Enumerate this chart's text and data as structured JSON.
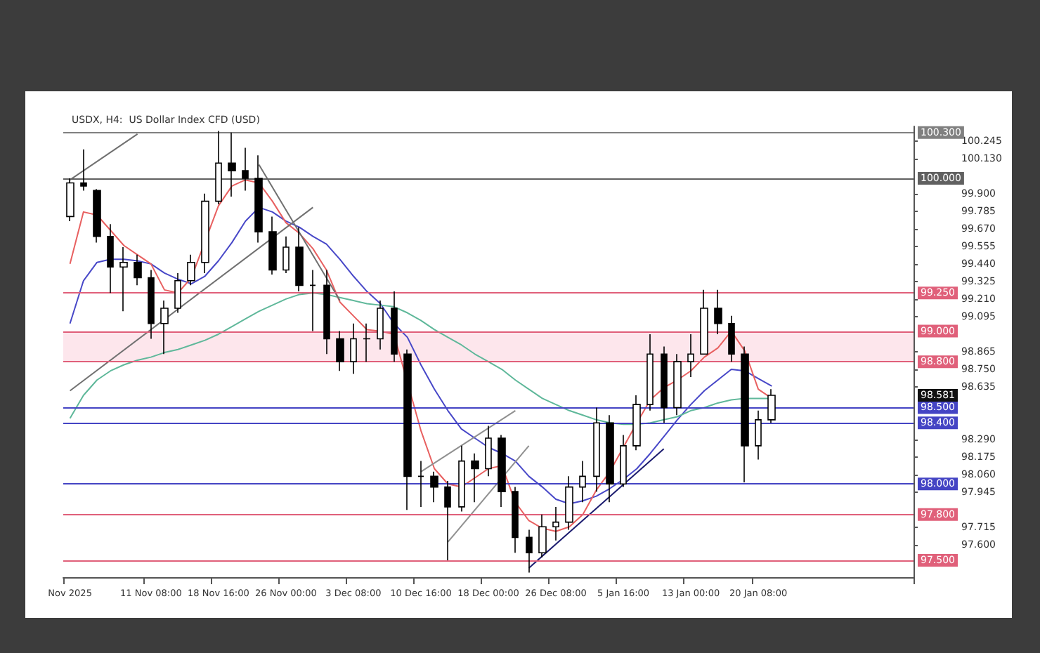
{
  "chart_data": {
    "type": "candlestick",
    "title": "USDX, H4:  US Dollar Index CFD (USD)",
    "categories": [
      "Nov 2025",
      null,
      null,
      null,
      null,
      null,
      "11 Nov 08:00",
      null,
      null,
      null,
      null,
      "18 Nov 16:00",
      null,
      null,
      null,
      null,
      "26 Nov 00:00",
      null,
      null,
      null,
      null,
      "3 Dec 08:00",
      null,
      null,
      null,
      null,
      "10 Dec 16:00",
      null,
      null,
      null,
      null,
      "18 Dec 00:00",
      null,
      null,
      null,
      null,
      "26 Dec 08:00",
      null,
      null,
      null,
      null,
      "5 Jan 16:00",
      null,
      null,
      null,
      null,
      "13 Jan 00:00",
      null,
      null,
      null,
      null,
      "20 Jan 08:00",
      null,
      null,
      null,
      null,
      null,
      null,
      null,
      null,
      null,
      null,
      null
    ],
    "series": [
      {
        "type": "line",
        "color": "#4848c8",
        "values": [
          99.05,
          99.33,
          99.45,
          99.47,
          99.47,
          99.46,
          99.44,
          99.38,
          99.34,
          99.31,
          99.36,
          99.46,
          99.58,
          99.72,
          99.81,
          99.78,
          99.72,
          99.68,
          99.62,
          99.57,
          99.47,
          99.36,
          99.26,
          99.18,
          99.05,
          98.96,
          98.78,
          98.62,
          98.48,
          98.36,
          98.3,
          98.24,
          98.2,
          98.15,
          98.05,
          97.98,
          97.9,
          97.87,
          97.89,
          97.92,
          97.97,
          98.03,
          98.1,
          98.2,
          98.31,
          98.42,
          98.52,
          98.61,
          98.68,
          98.75,
          98.74,
          98.69,
          98.64,
          null,
          null,
          null,
          null,
          null,
          null,
          null,
          null,
          null,
          null
        ]
      },
      {
        "type": "line",
        "color": "#5fb89a",
        "values": [
          98.43,
          98.58,
          98.68,
          98.74,
          98.78,
          98.81,
          98.83,
          98.86,
          98.88,
          98.91,
          98.94,
          98.98,
          99.03,
          99.08,
          99.13,
          99.17,
          99.21,
          99.24,
          99.25,
          99.24,
          99.22,
          99.2,
          99.18,
          99.17,
          99.16,
          99.12,
          99.07,
          99.01,
          98.96,
          98.91,
          98.85,
          98.8,
          98.75,
          98.68,
          98.62,
          98.56,
          98.52,
          98.48,
          98.45,
          98.42,
          98.4,
          98.39,
          98.39,
          98.4,
          98.42,
          98.44,
          98.48,
          98.5,
          98.53,
          98.55,
          98.56,
          98.56,
          98.56,
          null,
          null,
          null,
          null,
          null,
          null,
          null,
          null,
          null,
          null
        ]
      },
      {
        "type": "line",
        "color": "#e86060",
        "values": [
          99.44,
          99.78,
          99.76,
          99.66,
          99.56,
          99.5,
          99.44,
          99.27,
          99.25,
          99.35,
          null,
          99.82,
          99.95,
          99.99,
          99.97,
          99.85,
          99.71,
          99.64,
          99.54,
          99.4,
          99.19,
          99.1,
          99.01,
          99.0,
          98.98,
          null,
          98.35,
          98.1,
          98.0,
          97.98,
          98.04,
          98.1,
          98.12,
          97.88,
          97.76,
          97.71,
          97.69,
          97.72,
          97.8,
          97.96,
          98.08,
          98.24,
          98.4,
          98.55,
          98.63,
          98.68,
          98.74,
          98.83,
          98.89,
          99.0,
          98.87,
          98.62,
          98.56,
          null,
          null,
          null,
          null,
          null,
          null,
          null,
          null,
          null,
          null
        ]
      },
      {
        "type": "line",
        "color": "#707070",
        "values": [
          99.99,
          null,
          null,
          null,
          null,
          100.29,
          null,
          null,
          null,
          null,
          null,
          null,
          null,
          null,
          null,
          null,
          null,
          null,
          null,
          null,
          null,
          null,
          null,
          null,
          null,
          null,
          null,
          null,
          null,
          null,
          null,
          null,
          null,
          null,
          null,
          null,
          null,
          null,
          null,
          null,
          null,
          null,
          null,
          null,
          null,
          null,
          null,
          null,
          null,
          null,
          null,
          null,
          null,
          null,
          null,
          null,
          null,
          null,
          null,
          null,
          null,
          null,
          null
        ]
      },
      {
        "type": "line",
        "color": "#707070",
        "values": [
          98.61,
          null,
          null,
          null,
          null,
          null,
          null,
          null,
          null,
          null,
          null,
          null,
          null,
          null,
          null,
          null,
          null,
          null,
          99.81,
          null,
          null,
          null,
          null,
          null,
          null,
          null,
          null,
          null,
          null,
          null,
          null,
          null,
          null,
          null,
          null,
          null,
          null,
          null,
          null,
          null,
          null,
          null,
          null,
          null,
          null,
          null,
          null,
          null,
          null,
          null,
          null,
          null,
          null,
          null,
          null,
          null,
          null,
          null,
          null,
          null,
          null,
          null,
          null
        ]
      },
      {
        "type": "line",
        "color": "#707070",
        "values": [
          null,
          null,
          null,
          null,
          null,
          null,
          null,
          null,
          null,
          null,
          null,
          null,
          null,
          null,
          100.09,
          null,
          null,
          null,
          null,
          null,
          99.2,
          null,
          null,
          null,
          null,
          null,
          null,
          null,
          null,
          null,
          null,
          null,
          null,
          null,
          null,
          null,
          null,
          null,
          null,
          null,
          null,
          null,
          null,
          null,
          null,
          null,
          null,
          null,
          null,
          null,
          null,
          null,
          null,
          null,
          null,
          null,
          null,
          null,
          null,
          null,
          null,
          null,
          null
        ]
      },
      {
        "type": "line",
        "color": "#909090",
        "values": [
          null,
          null,
          null,
          null,
          null,
          null,
          null,
          null,
          null,
          null,
          null,
          null,
          null,
          null,
          null,
          null,
          null,
          null,
          null,
          null,
          null,
          null,
          null,
          null,
          null,
          null,
          98.08,
          null,
          null,
          null,
          null,
          null,
          null,
          98.48,
          null,
          null,
          null,
          null,
          null,
          null,
          null,
          null,
          null,
          null,
          null,
          null,
          null,
          null,
          null,
          null,
          null,
          null,
          null,
          null,
          null,
          null,
          null,
          null,
          null,
          null,
          null,
          null,
          null
        ]
      },
      {
        "type": "line",
        "color": "#909090",
        "values": [
          null,
          null,
          null,
          null,
          null,
          null,
          null,
          null,
          null,
          null,
          null,
          null,
          null,
          null,
          null,
          null,
          null,
          null,
          null,
          null,
          null,
          null,
          null,
          null,
          null,
          null,
          null,
          null,
          97.62,
          null,
          null,
          null,
          null,
          null,
          98.25,
          null,
          null,
          null,
          null,
          null,
          null,
          null,
          null,
          null,
          null,
          null,
          null,
          null,
          null,
          null,
          null,
          null,
          null,
          null,
          null,
          null,
          null,
          null,
          null,
          null,
          null,
          null,
          null
        ]
      },
      {
        "type": "line",
        "color": "#1a1a6e",
        "values": [
          null,
          null,
          null,
          null,
          null,
          null,
          null,
          null,
          null,
          null,
          null,
          null,
          null,
          null,
          null,
          null,
          null,
          null,
          null,
          null,
          null,
          null,
          null,
          null,
          null,
          null,
          null,
          null,
          null,
          null,
          null,
          null,
          null,
          null,
          97.45,
          null,
          null,
          null,
          null,
          null,
          null,
          null,
          null,
          null,
          98.23,
          null,
          null,
          null,
          null,
          null,
          null,
          null,
          null,
          null,
          null,
          null,
          null,
          null,
          null,
          null,
          null,
          null,
          null
        ]
      },
      {
        "type": "candlestick",
        "color": "#000000",
        "ohlc": [
          [
            99.75,
            100.0,
            99.72,
            99.97
          ],
          [
            99.97,
            100.19,
            99.92,
            99.95
          ],
          [
            99.92,
            99.93,
            99.58,
            99.62
          ],
          [
            99.62,
            99.7,
            99.25,
            99.42
          ],
          [
            99.42,
            99.55,
            99.13,
            99.45
          ],
          [
            99.45,
            99.5,
            99.3,
            99.35
          ],
          [
            99.35,
            99.4,
            98.95,
            99.05
          ],
          [
            99.05,
            99.2,
            98.85,
            99.15
          ],
          [
            99.15,
            99.38,
            99.12,
            99.33
          ],
          [
            99.33,
            99.5,
            99.3,
            99.45
          ],
          [
            99.45,
            99.9,
            99.38,
            99.85
          ],
          [
            99.85,
            100.31,
            99.83,
            100.1
          ],
          [
            100.1,
            100.3,
            99.88,
            100.05
          ],
          [
            100.05,
            100.2,
            99.92,
            100.0
          ],
          [
            100.0,
            100.15,
            99.58,
            99.65
          ],
          [
            99.65,
            99.75,
            99.37,
            99.4
          ],
          [
            99.4,
            99.62,
            99.38,
            99.55
          ],
          [
            99.55,
            99.68,
            99.26,
            99.3
          ],
          [
            99.3,
            99.4,
            99.0,
            99.3
          ],
          [
            99.3,
            99.4,
            98.85,
            98.95
          ],
          [
            98.95,
            99.0,
            98.74,
            98.8
          ],
          [
            98.8,
            99.05,
            98.72,
            98.95
          ],
          [
            98.95,
            99.05,
            98.8,
            98.95
          ],
          [
            98.95,
            99.2,
            98.88,
            99.15
          ],
          [
            99.15,
            99.26,
            98.8,
            98.85
          ],
          [
            98.85,
            98.88,
            97.83,
            98.05
          ],
          [
            98.05,
            98.15,
            97.85,
            98.05
          ],
          [
            98.05,
            98.08,
            97.88,
            97.98
          ],
          [
            97.98,
            98.02,
            97.5,
            97.85
          ],
          [
            97.85,
            98.25,
            97.82,
            98.15
          ],
          [
            98.15,
            98.2,
            97.88,
            98.1
          ],
          [
            98.1,
            98.38,
            98.05,
            98.3
          ],
          [
            98.3,
            98.32,
            97.85,
            97.95
          ],
          [
            97.95,
            97.98,
            97.55,
            97.65
          ],
          [
            97.65,
            97.7,
            97.42,
            97.55
          ],
          [
            97.55,
            97.8,
            97.52,
            97.72
          ],
          [
            97.72,
            97.85,
            97.63,
            97.75
          ],
          [
            97.75,
            98.05,
            97.7,
            97.98
          ],
          [
            97.98,
            98.15,
            97.88,
            98.05
          ],
          [
            98.05,
            98.5,
            97.95,
            98.4
          ],
          [
            98.4,
            98.45,
            97.88,
            98.0
          ],
          [
            98.0,
            98.32,
            97.98,
            98.25
          ],
          [
            98.25,
            98.58,
            98.22,
            98.52
          ],
          [
            98.52,
            98.98,
            98.48,
            98.85
          ],
          [
            98.85,
            98.9,
            98.4,
            98.5
          ],
          [
            98.5,
            98.85,
            98.45,
            98.8
          ],
          [
            98.8,
            98.98,
            98.7,
            98.85
          ],
          [
            98.85,
            99.27,
            98.85,
            99.15
          ],
          [
            99.15,
            99.27,
            98.98,
            99.05
          ],
          [
            99.05,
            99.1,
            98.8,
            98.85
          ],
          [
            98.85,
            98.9,
            98.01,
            98.25
          ],
          [
            98.25,
            98.48,
            98.16,
            98.42
          ],
          [
            98.42,
            98.62,
            98.4,
            98.58
          ],
          null,
          null,
          null,
          null,
          null,
          null,
          null,
          null,
          null,
          null
        ]
      }
    ],
    "ylim": [
      97.39,
      100.34
    ],
    "yticks": [
      {
        "value": 97.6,
        "label": "97.600"
      },
      {
        "value": 97.715,
        "label": "97.715"
      },
      {
        "value": 97.945,
        "label": "97.945"
      },
      {
        "value": 98.06,
        "label": "98.060"
      },
      {
        "value": 98.175,
        "label": "98.175"
      },
      {
        "value": 98.29,
        "label": "98.290"
      },
      {
        "value": 98.635,
        "label": "98.635"
      },
      {
        "value": 98.75,
        "label": "98.750"
      },
      {
        "value": 98.865,
        "label": "98.865"
      },
      {
        "value": 99.095,
        "label": "99.095"
      },
      {
        "value": 99.21,
        "label": "99.210"
      },
      {
        "value": 99.325,
        "label": "99.325"
      },
      {
        "value": 99.44,
        "label": "99.440"
      },
      {
        "value": 99.555,
        "label": "99.555"
      },
      {
        "value": 99.67,
        "label": "99.670"
      },
      {
        "value": 99.785,
        "label": "99.785"
      },
      {
        "value": 99.9,
        "label": "99.900"
      },
      {
        "value": 100.13,
        "label": "100.130"
      },
      {
        "value": 100.245,
        "label": "100.245"
      }
    ],
    "ref_lines": [
      {
        "axis": "y",
        "value": 100.3,
        "label": "100.300",
        "color": "#808080",
        "line_style": "solid"
      },
      {
        "axis": "y",
        "value": 100.0,
        "label": "100.000",
        "color": "#606060",
        "line_style": "solid"
      },
      {
        "axis": "y",
        "value": 99.25,
        "label": "99.250",
        "color": "#e0607a",
        "line_style": "solid"
      },
      {
        "axis": "y",
        "value": 99.0,
        "label": "99.000",
        "color": "#e0607a",
        "line_style": "solid"
      },
      {
        "axis": "y",
        "value": 98.8,
        "label": "98.800",
        "color": "#e0607a",
        "line_style": "solid"
      },
      {
        "axis": "y",
        "value": 98.5,
        "label": "98.500",
        "color": "#4444c4",
        "line_style": "solid"
      },
      {
        "axis": "y",
        "value": 98.4,
        "label": "98.400",
        "color": "#4444c4",
        "line_style": "solid"
      },
      {
        "axis": "y",
        "value": 98.0,
        "label": "98.000",
        "color": "#4444c4",
        "line_style": "solid"
      },
      {
        "axis": "y",
        "value": 97.8,
        "label": "97.800",
        "color": "#e0607a",
        "line_style": "solid"
      },
      {
        "axis": "y",
        "value": 97.5,
        "label": "97.500",
        "color": "#e0607a",
        "line_style": "solid"
      }
    ],
    "bands": [
      {
        "axis": "y",
        "from": 98.8,
        "to": 99.0,
        "color": "#fde6ec"
      }
    ],
    "annotations": [
      "98.581"
    ],
    "grid": false
  }
}
